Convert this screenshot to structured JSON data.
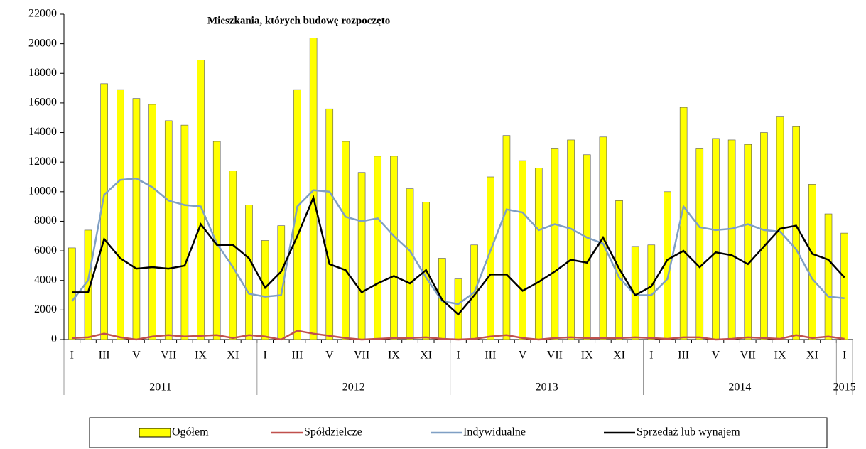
{
  "chart_data": {
    "type": "combo",
    "title": "Mieszkania, których budowę rozpoczęto",
    "categories": [
      "I",
      null,
      "III",
      null,
      "V",
      null,
      "VII",
      null,
      "IX",
      null,
      "XI",
      null,
      "I",
      null,
      "III",
      null,
      "V",
      null,
      "VII",
      null,
      "IX",
      null,
      "XI",
      null,
      "I",
      null,
      "III",
      null,
      "V",
      null,
      "VII",
      null,
      "IX",
      null,
      "XI",
      null,
      "I",
      null,
      "III",
      null,
      "V",
      null,
      "VII",
      null,
      "IX",
      null,
      "XI",
      null,
      "I"
    ],
    "years": [
      "2011",
      "2012",
      "2013",
      "2014",
      "2015"
    ],
    "series": [
      {
        "name": "Ogółem",
        "type": "bar",
        "color": "#ffff00",
        "values": [
          6200,
          7400,
          17300,
          16900,
          16300,
          15900,
          14800,
          14500,
          18900,
          13400,
          11400,
          9100,
          6700,
          7700,
          16900,
          20400,
          15600,
          13400,
          11300,
          12400,
          12400,
          10200,
          9300,
          5500,
          4100,
          6400,
          11000,
          13800,
          12100,
          11600,
          12900,
          13500,
          12500,
          13700,
          9400,
          6300,
          6400,
          10000,
          15700,
          12900,
          13600,
          13500,
          13200,
          14000,
          15100,
          14400,
          10500,
          8500,
          7200
        ]
      },
      {
        "name": "Spółdzielcze",
        "type": "line",
        "color": "#c0504d",
        "values": [
          100,
          150,
          400,
          150,
          0,
          200,
          300,
          200,
          250,
          300,
          100,
          300,
          200,
          0,
          600,
          400,
          250,
          100,
          0,
          50,
          100,
          100,
          150,
          50,
          0,
          50,
          200,
          300,
          100,
          0,
          100,
          150,
          100,
          100,
          100,
          150,
          100,
          50,
          150,
          150,
          0,
          50,
          150,
          100,
          50,
          300,
          100,
          200,
          50
        ]
      },
      {
        "name": "Indywidualne",
        "type": "line",
        "color": "#7f9fc4",
        "values": [
          2600,
          4000,
          9800,
          10800,
          10900,
          10300,
          9400,
          9100,
          9000,
          6500,
          4900,
          3100,
          2900,
          3000,
          9000,
          10100,
          10000,
          8300,
          8000,
          8200,
          7000,
          6000,
          4200,
          2600,
          2400,
          3200,
          6000,
          8800,
          8600,
          7400,
          7800,
          7500,
          6900,
          6500,
          4200,
          3000,
          3000,
          4100,
          9000,
          7600,
          7400,
          7500,
          7800,
          7400,
          7300,
          6100,
          4100,
          2900,
          2800
        ]
      },
      {
        "name": "Sprzedaż lub wynajem",
        "type": "line",
        "color": "#000000",
        "values": [
          3200,
          3200,
          6800,
          5500,
          4800,
          4900,
          4800,
          5000,
          7800,
          6400,
          6400,
          5500,
          3500,
          4600,
          7000,
          9600,
          5100,
          4700,
          3200,
          3800,
          4300,
          3800,
          4700,
          2700,
          1700,
          3000,
          4400,
          4400,
          3300,
          3900,
          4600,
          5400,
          5200,
          6900,
          4800,
          3000,
          3600,
          5400,
          6000,
          4900,
          5900,
          5700,
          5100,
          6300,
          7500,
          7700,
          5800,
          5400,
          4200
        ]
      }
    ],
    "ylim": [
      0,
      22000
    ],
    "yticks": [
      0,
      2000,
      4000,
      6000,
      8000,
      10000,
      12000,
      14000,
      16000,
      18000,
      20000,
      22000
    ],
    "legend": "bottom"
  }
}
